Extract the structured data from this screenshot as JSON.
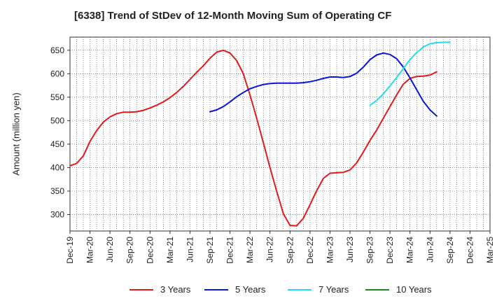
{
  "chart_data": {
    "type": "line",
    "title": "[6338]  Trend of StDev of 12-Month Moving Sum of Operating CF",
    "ylabel": "Amount (million yen)",
    "xlabel": "",
    "ylim": [
      265,
      678
    ],
    "yticks": [
      300,
      350,
      400,
      450,
      500,
      550,
      600,
      650
    ],
    "xticks": [
      "Dec-19",
      "Mar-20",
      "Jun-20",
      "Sep-20",
      "Dec-20",
      "Mar-21",
      "Jun-21",
      "Sep-21",
      "Dec-21",
      "Mar-22",
      "Jun-22",
      "Sep-22",
      "Dec-22",
      "Mar-23",
      "Jun-23",
      "Sep-23",
      "Dec-23",
      "Mar-24",
      "Jun-24",
      "Sep-24",
      "Dec-24",
      "Mar-25"
    ],
    "x_start": "Dec-19",
    "x_step": "1 month",
    "grid": true,
    "legend_position": "bottom",
    "series": [
      {
        "name": "3 Years",
        "color": "#e31a1c",
        "start": "Dec-19",
        "values": [
          404,
          409,
          425,
          456,
          479,
          497,
          508,
          515,
          518,
          518,
          519,
          522,
          527,
          533,
          540,
          549,
          560,
          573,
          588,
          603,
          617,
          633,
          646,
          650,
          644,
          628,
          600,
          555,
          505,
          453,
          400,
          350,
          302,
          277,
          276,
          292,
          321,
          351,
          377,
          388,
          389,
          390,
          395,
          410,
          433,
          458,
          480,
          505,
          530,
          555,
          578,
          590,
          594,
          595,
          597,
          604
        ]
      },
      {
        "name": "5 Years",
        "color": "#0a14d8",
        "start": "Sep-21",
        "values": [
          519,
          523,
          530,
          540,
          551,
          560,
          568,
          573,
          577,
          579,
          580,
          580,
          580,
          580,
          581,
          583,
          586,
          590,
          593,
          593,
          592,
          594,
          601,
          614,
          630,
          640,
          644,
          641,
          632,
          614,
          591,
          566,
          541,
          523,
          510
        ]
      },
      {
        "name": "7 Years",
        "color": "#22ddee",
        "start": "Sep-23",
        "values": [
          533,
          543,
          557,
          574,
          592,
          611,
          630,
          645,
          657,
          664,
          666,
          667,
          667
        ]
      },
      {
        "name": "10 Years",
        "color": "#1f8a1f",
        "start": "",
        "values": []
      }
    ]
  }
}
